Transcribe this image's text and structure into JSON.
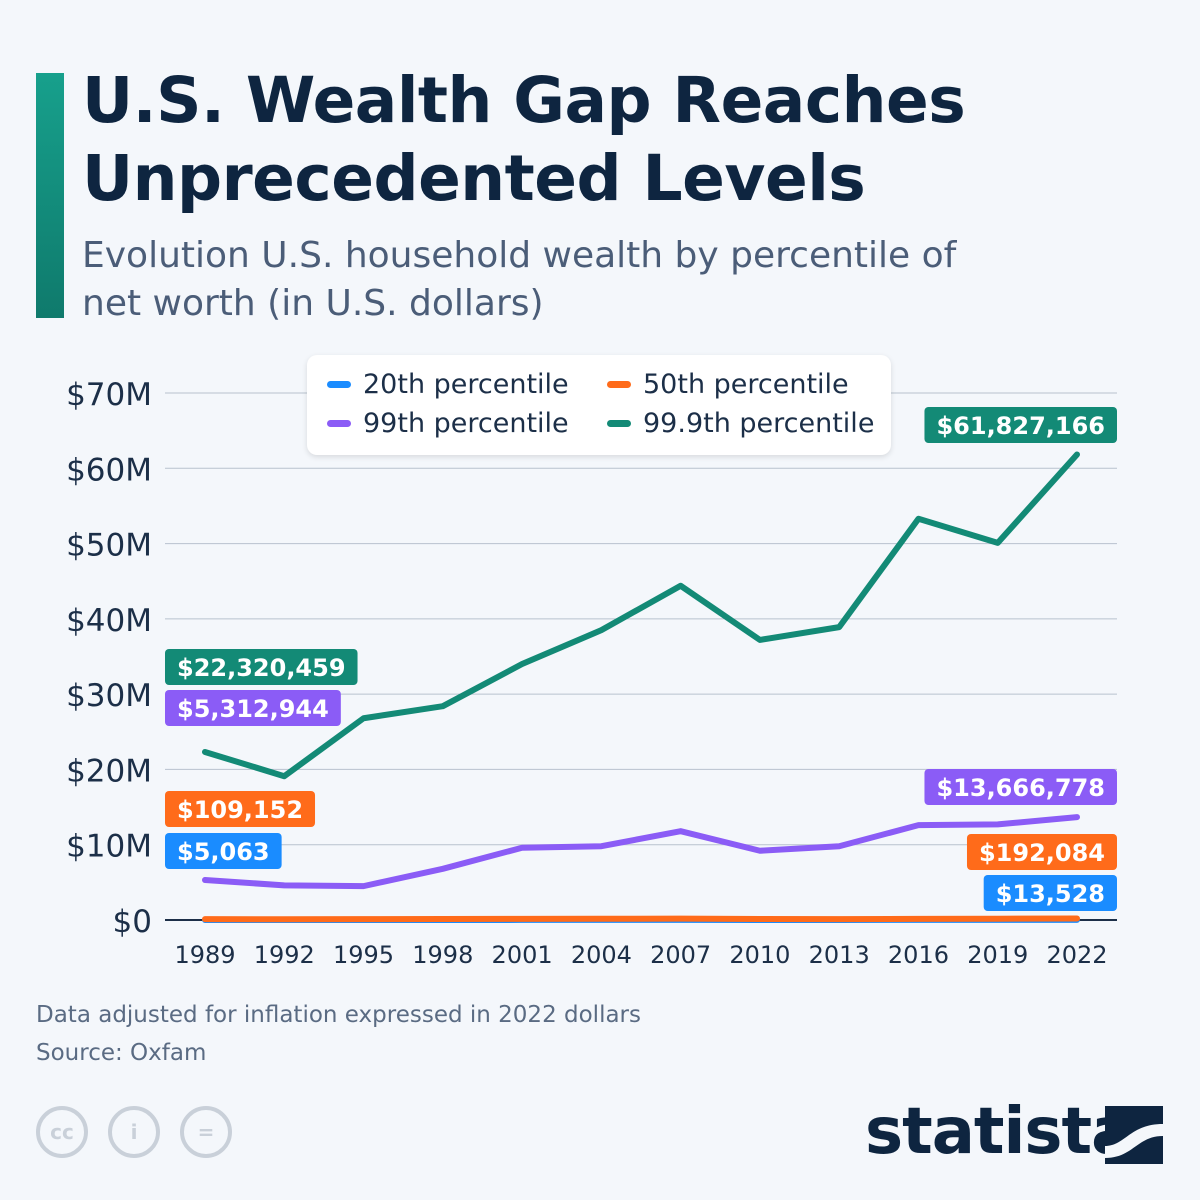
{
  "header": {
    "title_line1": "U.S. Wealth Gap Reaches",
    "title_line2": "Unprecedented Levels",
    "subtitle": "Evolution U.S. household wealth by percentile of net worth (in U.S. dollars)"
  },
  "footer": {
    "note": "Data adjusted for inflation expressed in 2022 dollars",
    "source": "Source: Oxfam",
    "brand": "statista",
    "license_icons": [
      "cc-icon",
      "attribution-icon",
      "no-derivatives-icon"
    ]
  },
  "chart_data": {
    "type": "line",
    "title": "U.S. Wealth Gap Reaches Unprecedented Levels",
    "x": [
      1989,
      1992,
      1995,
      1998,
      2001,
      2004,
      2007,
      2010,
      2013,
      2016,
      2019,
      2022
    ],
    "ylim": [
      0,
      70000000
    ],
    "yticks": [
      0,
      10000000,
      20000000,
      30000000,
      40000000,
      50000000,
      60000000,
      70000000
    ],
    "ytick_labels": [
      "$0",
      "$10M",
      "$20M",
      "$30M",
      "$40M",
      "$50M",
      "$60M",
      "$70M"
    ],
    "grid": true,
    "legend": "top",
    "series": [
      {
        "name": "20th percentile",
        "color": "#1a8cff",
        "values": [
          5063,
          4000,
          3500,
          6000,
          8500,
          9000,
          11000,
          7000,
          6500,
          9500,
          12000,
          13528
        ],
        "label_start": "$5,063",
        "label_end": "$13,528"
      },
      {
        "name": "50th percentile",
        "color": "#ff6b1a",
        "values": [
          109152,
          105000,
          110000,
          125000,
          150000,
          160000,
          175000,
          130000,
          120000,
          145000,
          170000,
          192084
        ],
        "label_start": "$109,152",
        "label_end": "$192,084"
      },
      {
        "name": "99th percentile",
        "color": "#8b5cf6",
        "values": [
          5312944,
          4600000,
          4500000,
          6800000,
          9600000,
          9800000,
          11800000,
          9200000,
          9800000,
          12600000,
          12700000,
          13666778
        ],
        "label_start": "$5,312,944",
        "label_end": "$13,666,778"
      },
      {
        "name": "99.9th percentile",
        "color": "#138a76",
        "values": [
          22320459,
          19100000,
          26800000,
          28400000,
          34000000,
          38500000,
          44400000,
          37200000,
          38900000,
          53300000,
          50100000,
          61827166
        ],
        "label_start": "$22,320,459",
        "label_end": "$61,827,166"
      }
    ]
  }
}
